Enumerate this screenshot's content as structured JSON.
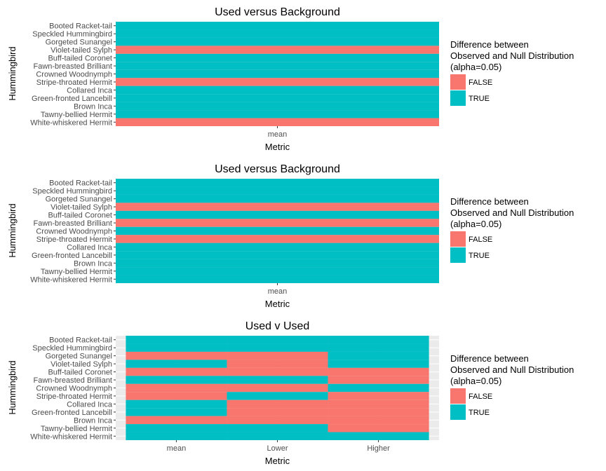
{
  "colors": {
    "false": "#F8766D",
    "true": "#00BFC4",
    "panel": "#EBEBEB",
    "tick": "#333333"
  },
  "legend": {
    "title_lines": [
      "Difference between",
      "Observed and Null Distribution",
      "(alpha=0.05)"
    ],
    "labels": [
      "FALSE",
      "TRUE"
    ]
  },
  "chart_data": [
    {
      "type": "heatmap",
      "title": "Used versus Background",
      "xlabel": "Metric",
      "ylabel": "Hummingbird",
      "x": [
        "mean"
      ],
      "y": [
        "Booted Racket-tail",
        "Speckled Hummingbird",
        "Gorgeted Sunangel",
        "Violet-tailed Sylph",
        "Buff-tailed Coronet",
        "Fawn-breasted Brilliant",
        "Crowned Woodnymph",
        "Stripe-throated Hermit",
        "Collared Inca",
        "Green-fronted Lancebill",
        "Brown Inca",
        "Tawny-bellied Hermit",
        "White-whiskered Hermit"
      ],
      "values": [
        [
          true
        ],
        [
          true
        ],
        [
          true
        ],
        [
          false
        ],
        [
          true
        ],
        [
          true
        ],
        [
          true
        ],
        [
          false
        ],
        [
          true
        ],
        [
          true
        ],
        [
          true
        ],
        [
          true
        ],
        [
          false
        ]
      ]
    },
    {
      "type": "heatmap",
      "title": "Used versus Background",
      "xlabel": "Metric",
      "ylabel": "Hummingbird",
      "x": [
        "mean"
      ],
      "y": [
        "Booted Racket-tail",
        "Speckled Hummingbird",
        "Gorgeted Sunangel",
        "Violet-tailed Sylph",
        "Buff-tailed Coronet",
        "Fawn-breasted Brilliant",
        "Crowned Woodnymph",
        "Stripe-throated Hermit",
        "Collared Inca",
        "Green-fronted Lancebill",
        "Brown Inca",
        "Tawny-bellied Hermit",
        "White-whiskered Hermit"
      ],
      "values": [
        [
          true
        ],
        [
          true
        ],
        [
          true
        ],
        [
          false
        ],
        [
          true
        ],
        [
          false
        ],
        [
          true
        ],
        [
          false
        ],
        [
          true
        ],
        [
          true
        ],
        [
          true
        ],
        [
          true
        ],
        [
          true
        ]
      ]
    },
    {
      "type": "heatmap",
      "title": "Used v Used",
      "xlabel": "Metric",
      "ylabel": "Hummingbird",
      "x": [
        "mean",
        "Lower",
        "Higher"
      ],
      "y": [
        "Booted Racket-tail",
        "Speckled Hummingbird",
        "Gorgeted Sunangel",
        "Violet-tailed Sylph",
        "Buff-tailed Coronet",
        "Fawn-breasted Brilliant",
        "Crowned Woodnymph",
        "Stripe-throated Hermit",
        "Collared Inca",
        "Green-fronted Lancebill",
        "Brown Inca",
        "Tawny-bellied Hermit",
        "White-whiskered Hermit"
      ],
      "values": [
        [
          true,
          true,
          true
        ],
        [
          true,
          true,
          true
        ],
        [
          false,
          false,
          true
        ],
        [
          true,
          false,
          true
        ],
        [
          false,
          false,
          false
        ],
        [
          true,
          true,
          false
        ],
        [
          false,
          false,
          true
        ],
        [
          false,
          true,
          false
        ],
        [
          true,
          false,
          false
        ],
        [
          true,
          false,
          false
        ],
        [
          false,
          false,
          false
        ],
        [
          true,
          true,
          false
        ],
        [
          true,
          true,
          true
        ]
      ]
    }
  ]
}
